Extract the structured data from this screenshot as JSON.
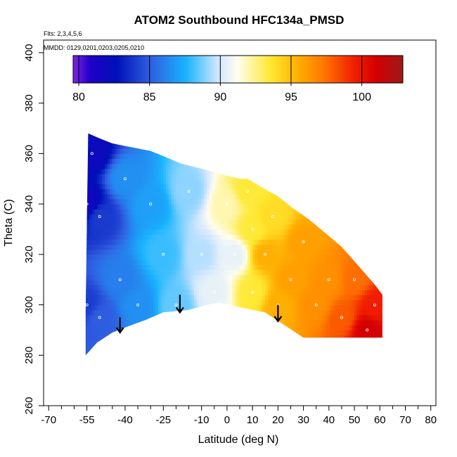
{
  "chart_data": {
    "type": "heatmap",
    "title": "ATOM2 Southbound HFC134a_PMSD",
    "annotations": {
      "flights": "Flts: 2,3,4,5,6",
      "dates": "MMDD: 0129,0201,0203,0205,0210"
    },
    "xlabel": "Latitude (deg N)",
    "ylabel": "Theta (C)",
    "xlim": [
      -72,
      82
    ],
    "ylim": [
      260,
      405
    ],
    "x_ticks": [
      -70,
      -55,
      -40,
      -25,
      -10,
      0,
      10,
      20,
      30,
      40,
      50,
      60,
      70,
      80
    ],
    "x_minor_ticks": [
      -65,
      -60,
      -50,
      -45,
      -35,
      -30,
      -20,
      -15,
      -5,
      5,
      15,
      25,
      35,
      45,
      55,
      65,
      75
    ],
    "y_ticks": [
      260,
      280,
      300,
      320,
      340,
      360,
      380,
      400
    ],
    "colorbar": {
      "min": 79.6,
      "max": 102.9,
      "ticks": [
        80,
        85,
        90,
        95,
        100
      ],
      "stops": [
        {
          "v": 79.6,
          "c": "#7f23e6"
        },
        {
          "v": 80.8,
          "c": "#1f00c8"
        },
        {
          "v": 82.7,
          "c": "#0010b8"
        },
        {
          "v": 85.0,
          "c": "#2f5de0"
        },
        {
          "v": 87.6,
          "c": "#19b4ff"
        },
        {
          "v": 89.8,
          "c": "#cfe6ff"
        },
        {
          "v": 91.2,
          "c": "#fffdf0"
        },
        {
          "v": 93.6,
          "c": "#ffe830"
        },
        {
          "v": 95.6,
          "c": "#ffab00"
        },
        {
          "v": 97.2,
          "c": "#ff7b00"
        },
        {
          "v": 99.5,
          "c": "#f01d00"
        },
        {
          "v": 101.0,
          "c": "#d40000"
        },
        {
          "v": 102.9,
          "c": "#9c1a1a"
        }
      ]
    },
    "field": {
      "boundary": [
        [
          -55.5,
          280
        ],
        [
          -55.5,
          297
        ],
        [
          -54.5,
          368
        ],
        [
          -50,
          366
        ],
        [
          -45,
          364
        ],
        [
          -40,
          363
        ],
        [
          -30,
          361
        ],
        [
          -25,
          359
        ],
        [
          -18,
          356
        ],
        [
          -10,
          354
        ],
        [
          -3,
          352
        ],
        [
          5,
          350
        ],
        [
          8,
          350
        ],
        [
          13,
          347
        ],
        [
          20,
          343
        ],
        [
          25,
          339
        ],
        [
          32,
          334
        ],
        [
          38,
          329
        ],
        [
          45,
          323
        ],
        [
          52,
          315
        ],
        [
          58,
          308
        ],
        [
          61,
          304
        ],
        [
          61,
          287
        ],
        [
          30,
          287
        ],
        [
          21,
          293
        ],
        [
          15,
          297
        ],
        [
          5,
          299
        ],
        [
          -3,
          301
        ],
        [
          -8,
          300
        ],
        [
          -15,
          298
        ],
        [
          -25,
          297
        ],
        [
          -32,
          294
        ],
        [
          -40,
          291
        ],
        [
          -45,
          289
        ],
        [
          -51,
          285
        ],
        [
          -55.5,
          280
        ]
      ],
      "samples": [
        {
          "lat": -55,
          "theta": 300,
          "v": 84
        },
        {
          "lat": -55,
          "theta": 340,
          "v": 81.5
        },
        {
          "lat": -53,
          "theta": 360,
          "v": 82
        },
        {
          "lat": -50,
          "theta": 335,
          "v": 84
        },
        {
          "lat": -50,
          "theta": 295,
          "v": 85
        },
        {
          "lat": -42,
          "theta": 310,
          "v": 86
        },
        {
          "lat": -40,
          "theta": 350,
          "v": 86.5
        },
        {
          "lat": -35,
          "theta": 300,
          "v": 86.5
        },
        {
          "lat": -30,
          "theta": 340,
          "v": 87
        },
        {
          "lat": -25,
          "theta": 320,
          "v": 88
        },
        {
          "lat": -20,
          "theta": 300,
          "v": 88.5
        },
        {
          "lat": -15,
          "theta": 345,
          "v": 89
        },
        {
          "lat": -10,
          "theta": 320,
          "v": 89.5
        },
        {
          "lat": -5,
          "theta": 305,
          "v": 90.5
        },
        {
          "lat": 0,
          "theta": 340,
          "v": 92
        },
        {
          "lat": 3,
          "theta": 320,
          "v": 90.5
        },
        {
          "lat": 8,
          "theta": 345,
          "v": 93.5
        },
        {
          "lat": 10,
          "theta": 330,
          "v": 93.5
        },
        {
          "lat": 10,
          "theta": 305,
          "v": 93.5
        },
        {
          "lat": 15,
          "theta": 320,
          "v": 95.5
        },
        {
          "lat": 18,
          "theta": 335,
          "v": 94
        },
        {
          "lat": 20,
          "theta": 300,
          "v": 95.5
        },
        {
          "lat": 25,
          "theta": 310,
          "v": 96
        },
        {
          "lat": 30,
          "theta": 325,
          "v": 96
        },
        {
          "lat": 35,
          "theta": 300,
          "v": 96.5
        },
        {
          "lat": 40,
          "theta": 310,
          "v": 96.5
        },
        {
          "lat": 45,
          "theta": 295,
          "v": 98
        },
        {
          "lat": 50,
          "theta": 310,
          "v": 97.5
        },
        {
          "lat": 55,
          "theta": 290,
          "v": 101
        },
        {
          "lat": 58,
          "theta": 300,
          "v": 99.5
        }
      ],
      "arrows_lat": [
        -42,
        -18.5,
        20
      ],
      "arrows_theta": [
        [
          295,
          289
        ],
        [
          304,
          297
        ],
        [
          300,
          293.5
        ]
      ]
    },
    "grid": false,
    "legend": "horizontal colorbar at top inside plot"
  }
}
